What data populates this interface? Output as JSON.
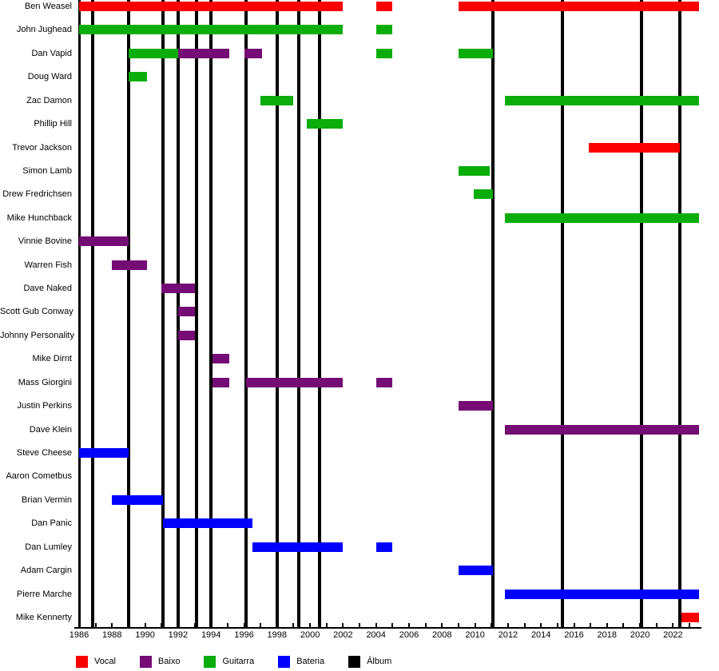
{
  "chart_data": {
    "type": "timeline",
    "description": "Band membership timeline chart: rows are band members, horizontal colored bars show tenure periods by role, vertical black lines mark album releases.",
    "x_axis": {
      "min_year": 1986,
      "max_year": 2023.6,
      "tick_every_years": 1,
      "label_every_years": 2,
      "tick_labels": [
        "1986",
        "1988",
        "1990",
        "1992",
        "1994",
        "1996",
        "1998",
        "2000",
        "2002",
        "2004",
        "2006",
        "2008",
        "2010",
        "2012",
        "2014",
        "2016",
        "2018",
        "2020",
        "2022"
      ]
    },
    "legend": {
      "items": [
        {
          "role": "vocal",
          "label": "Vocal",
          "color": "#fb0000"
        },
        {
          "role": "baixo",
          "label": "Baixo",
          "color": "#750b75"
        },
        {
          "role": "guitarra",
          "label": "Guitarra",
          "color": "#0bad0b"
        },
        {
          "role": "bateria",
          "label": "Bateria",
          "color": "#0000fb"
        },
        {
          "role": "album",
          "label": "Álbum",
          "color": "#000000"
        }
      ]
    },
    "album_release_lines_years": [
      1986.8,
      1989.0,
      1991.1,
      1992.0,
      1993.1,
      1994.0,
      1996.1,
      1998.0,
      1999.3,
      2000.6,
      2011.1,
      2015.3,
      2020.1,
      2022.4
    ],
    "members": [
      {
        "name": "Ben Weasel",
        "bars": [
          {
            "role": "vocal",
            "start": 1986,
            "end": 2002
          },
          {
            "role": "vocal",
            "start": 2004,
            "end": 2005
          },
          {
            "role": "vocal",
            "start": 2009,
            "end": 2023.6
          }
        ]
      },
      {
        "name": "John Jughead",
        "bars": [
          {
            "role": "guitarra",
            "start": 1986,
            "end": 2002
          },
          {
            "role": "guitarra",
            "start": 2004,
            "end": 2005
          }
        ]
      },
      {
        "name": "Dan Vapid",
        "bars": [
          {
            "role": "guitarra",
            "start": 1989,
            "end": 1992
          },
          {
            "role": "baixo",
            "start": 1992,
            "end": 1995.1
          },
          {
            "role": "baixo",
            "start": 1996,
            "end": 1997.1
          },
          {
            "role": "guitarra",
            "start": 2004,
            "end": 2005
          },
          {
            "role": "guitarra",
            "start": 2009,
            "end": 2011.1
          }
        ]
      },
      {
        "name": "Doug Ward",
        "bars": [
          {
            "role": "guitarra",
            "start": 1989,
            "end": 1990.1
          }
        ]
      },
      {
        "name": "Zac Damon",
        "bars": [
          {
            "role": "guitarra",
            "start": 1997,
            "end": 1999
          },
          {
            "role": "guitarra",
            "start": 2011.8,
            "end": 2023.6
          }
        ]
      },
      {
        "name": "Phillip Hill",
        "bars": [
          {
            "role": "guitarra",
            "start": 1999.8,
            "end": 2002
          }
        ]
      },
      {
        "name": "Trevor Jackson",
        "bars": [
          {
            "role": "vocal",
            "start": 2016.9,
            "end": 2022.4
          }
        ]
      },
      {
        "name": "Simon Lamb",
        "bars": [
          {
            "role": "guitarra",
            "start": 2009,
            "end": 2010.9
          }
        ]
      },
      {
        "name": "Drew Fredrichsen",
        "bars": [
          {
            "role": "guitarra",
            "start": 2009.9,
            "end": 2011.1
          }
        ]
      },
      {
        "name": "Mike Hunchback",
        "bars": [
          {
            "role": "guitarra",
            "start": 2011.8,
            "end": 2023.6
          }
        ]
      },
      {
        "name": "Vinnie Bovine",
        "bars": [
          {
            "role": "baixo",
            "start": 1986,
            "end": 1989
          }
        ]
      },
      {
        "name": "Warren Fish",
        "bars": [
          {
            "role": "baixo",
            "start": 1988,
            "end": 1990.1
          }
        ]
      },
      {
        "name": "Dave Naked",
        "bars": [
          {
            "role": "baixo",
            "start": 1991,
            "end": 1993
          }
        ]
      },
      {
        "name": "Scott Gub Conway",
        "bars": [
          {
            "role": "baixo",
            "start": 1992,
            "end": 1993
          }
        ]
      },
      {
        "name": "Johnny Personality",
        "bars": [
          {
            "role": "baixo",
            "start": 1992,
            "end": 1993
          }
        ]
      },
      {
        "name": "Mike Dirnt",
        "bars": [
          {
            "role": "baixo",
            "start": 1994.1,
            "end": 1995.1
          }
        ]
      },
      {
        "name": "Mass Giorgini",
        "bars": [
          {
            "role": "baixo",
            "start": 1994.1,
            "end": 1995.1
          },
          {
            "role": "baixo",
            "start": 1996.1,
            "end": 2002
          },
          {
            "role": "baixo",
            "start": 2004,
            "end": 2005
          }
        ]
      },
      {
        "name": "Justin Perkins",
        "bars": [
          {
            "role": "baixo",
            "start": 2009,
            "end": 2011.1
          }
        ]
      },
      {
        "name": "Dave Klein",
        "bars": [
          {
            "role": "baixo",
            "start": 2011.8,
            "end": 2023.6
          }
        ]
      },
      {
        "name": "Steve Cheese",
        "bars": [
          {
            "role": "bateria",
            "start": 1986,
            "end": 1989
          }
        ]
      },
      {
        "name": "Aaron Cometbus",
        "bars": []
      },
      {
        "name": "Brian Vermin",
        "bars": [
          {
            "role": "bateria",
            "start": 1988,
            "end": 1991.1
          }
        ]
      },
      {
        "name": "Dan Panic",
        "bars": [
          {
            "role": "bateria",
            "start": 1991.1,
            "end": 1996.5
          }
        ]
      },
      {
        "name": "Dan Lumley",
        "bars": [
          {
            "role": "bateria",
            "start": 1996.5,
            "end": 2002
          },
          {
            "role": "bateria",
            "start": 2004,
            "end": 2005
          }
        ]
      },
      {
        "name": "Adam Cargin",
        "bars": [
          {
            "role": "bateria",
            "start": 2009,
            "end": 2011.1
          }
        ]
      },
      {
        "name": "Pierre Marche",
        "bars": [
          {
            "role": "bateria",
            "start": 2011.8,
            "end": 2023.6
          }
        ]
      },
      {
        "name": "Mike Kennerty",
        "bars": [
          {
            "role": "vocal",
            "start": 2022.5,
            "end": 2023.6
          }
        ]
      }
    ]
  }
}
